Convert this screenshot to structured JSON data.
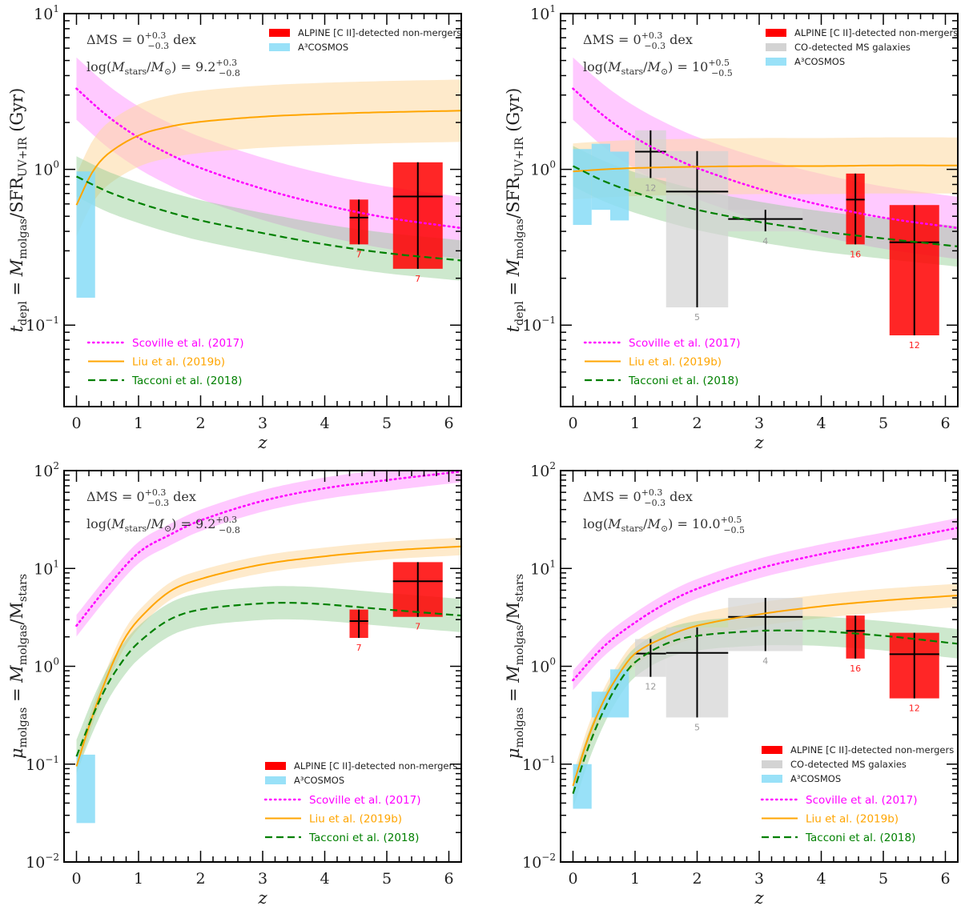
{
  "chart_data": [
    {
      "id": "tdepl_lowmass",
      "type": "line",
      "xlabel": "z",
      "ylabel": "t_depl = M_molgas / SFR_UV+IR (Gyr)",
      "ylabel_parts": {
        "base": "t",
        "sub1": "depl",
        "mid": " = M",
        "sub2": "molgas",
        "mid2": "/SFR",
        "sub3": "UV+IR",
        "end": " (Gyr)"
      },
      "xlim": [
        -0.2,
        6.2
      ],
      "ylim": [
        0.03,
        10
      ],
      "yscale": "log",
      "x_ticks": [
        "0",
        "1",
        "2",
        "3",
        "4",
        "5",
        "6"
      ],
      "y_ticks": [
        {
          "value": 10,
          "exp": "1"
        },
        {
          "value": 1,
          "exp": "0"
        },
        {
          "value": 0.1,
          "exp": "−1"
        }
      ],
      "annotations": {
        "line1": {
          "text": "ΔMS = 0",
          "sup": "+0.3",
          "sub": "−0.3",
          "suffix": " dex"
        },
        "line2": {
          "text": "log(M",
          "sub_stars": "stars",
          "mid": "/M",
          "sub_sun": "⊙",
          "eq": ") = 9.2",
          "sup": "+0.3",
          "sub": "−0.8"
        }
      },
      "legend_boxes": [
        {
          "label": "ALPINE [C II]-detected non-mergers",
          "color": "#ff0000"
        },
        {
          "label": "A³COSMOS",
          "color": "#87dcf7"
        }
      ],
      "legend_boxes_placement": "top-right",
      "legend_lines_placement": "bottom-left",
      "series": [
        {
          "name": "Scoville et al. (2017)",
          "style": "dotted",
          "color": "#ff00ff",
          "x": [
            0,
            0.5,
            1,
            1.5,
            2,
            3,
            4,
            5,
            6.2
          ],
          "y": [
            3.3,
            2.2,
            1.6,
            1.25,
            1.02,
            0.75,
            0.59,
            0.49,
            0.42
          ],
          "band_dex": 0.2
        },
        {
          "name": "Liu et al. (2019b)",
          "style": "solid",
          "color": "#ffa500",
          "x": [
            0,
            0.25,
            0.5,
            1,
            1.5,
            2,
            3,
            4,
            5,
            6.2
          ],
          "y": [
            0.59,
            0.95,
            1.25,
            1.65,
            1.88,
            2.02,
            2.18,
            2.27,
            2.33,
            2.38
          ],
          "band_dex": 0.2
        },
        {
          "name": "Tacconi et al. (2018)",
          "style": "dashed",
          "color": "#008000",
          "x": [
            0,
            0.5,
            1,
            1.5,
            2,
            3,
            4,
            5,
            6.2
          ],
          "y": [
            0.9,
            0.72,
            0.61,
            0.53,
            0.47,
            0.39,
            0.33,
            0.29,
            0.26
          ],
          "band_dex": 0.13
        }
      ],
      "boxes": [
        {
          "group": "A³COSMOS",
          "color": "#87dcf7",
          "x": [
            0.0,
            0.3
          ],
          "y": [
            0.15,
            0.97
          ],
          "median": null,
          "n": null
        },
        {
          "group": "ALPINE",
          "color": "#ff0000",
          "x": [
            4.4,
            4.7
          ],
          "y": [
            0.33,
            0.64
          ],
          "median": 0.49,
          "n": "7"
        },
        {
          "group": "ALPINE",
          "color": "#ff0000",
          "x": [
            5.1,
            5.9
          ],
          "y": [
            0.23,
            1.11
          ],
          "median": 0.67,
          "n": "7"
        }
      ]
    },
    {
      "id": "tdepl_highmass",
      "type": "line",
      "xlabel": "z",
      "ylabel": "t_depl = M_molgas / SFR_UV+IR (Gyr)",
      "ylabel_parts": {
        "base": "t",
        "sub1": "depl",
        "mid": " = M",
        "sub2": "molgas",
        "mid2": "/SFR",
        "sub3": "UV+IR",
        "end": " (Gyr)"
      },
      "xlim": [
        -0.2,
        6.2
      ],
      "ylim": [
        0.03,
        10
      ],
      "yscale": "log",
      "x_ticks": [
        "0",
        "1",
        "2",
        "3",
        "4",
        "5",
        "6"
      ],
      "y_ticks": [
        {
          "value": 10,
          "exp": "1"
        },
        {
          "value": 1,
          "exp": "0"
        },
        {
          "value": 0.1,
          "exp": "−1"
        }
      ],
      "annotations": {
        "line1": {
          "text": "ΔMS = 0",
          "sup": "+0.3",
          "sub": "−0.3",
          "suffix": " dex"
        },
        "line2": {
          "text": "log(M",
          "sub_stars": "stars",
          "mid": "/M",
          "sub_sun": "⊙",
          "eq": ") = 10",
          "sup": "+0.5",
          "sub": "−0.5"
        }
      },
      "legend_boxes": [
        {
          "label": "ALPINE [C II]-detected non-mergers",
          "color": "#ff0000"
        },
        {
          "label": "CO-detected MS galaxies",
          "color": "#d3d3d3"
        },
        {
          "label": "A³COSMOS",
          "color": "#87dcf7"
        }
      ],
      "legend_boxes_placement": "top-right",
      "legend_lines_placement": "bottom-left",
      "series": [
        {
          "name": "Scoville et al. (2017)",
          "style": "dotted",
          "color": "#ff00ff",
          "x": [
            0,
            0.5,
            1,
            1.5,
            2,
            3,
            4,
            5,
            6.2
          ],
          "y": [
            3.3,
            2.2,
            1.6,
            1.25,
            1.02,
            0.75,
            0.59,
            0.49,
            0.42
          ],
          "band_dex": 0.2
        },
        {
          "name": "Liu et al. (2019b)",
          "style": "solid",
          "color": "#ffa500",
          "x": [
            0,
            0.5,
            1,
            2,
            3,
            4,
            5,
            6.2
          ],
          "y": [
            0.97,
            1.0,
            1.02,
            1.04,
            1.05,
            1.05,
            1.06,
            1.06
          ],
          "band_dex": 0.18
        },
        {
          "name": "Tacconi et al. (2018)",
          "style": "dashed",
          "color": "#008000",
          "x": [
            0,
            0.5,
            1,
            1.5,
            2,
            3,
            4,
            5,
            6.2
          ],
          "y": [
            1.05,
            0.84,
            0.71,
            0.62,
            0.55,
            0.46,
            0.4,
            0.36,
            0.32
          ],
          "band_dex": 0.13
        }
      ],
      "boxes": [
        {
          "group": "A³COSMOS",
          "color": "#87dcf7",
          "x": [
            0.0,
            0.3
          ],
          "y": [
            0.44,
            1.35
          ],
          "median": null,
          "n": null
        },
        {
          "group": "A³COSMOS",
          "color": "#87dcf7",
          "x": [
            0.3,
            0.6
          ],
          "y": [
            0.55,
            1.46
          ],
          "median": null,
          "n": null
        },
        {
          "group": "A³COSMOS",
          "color": "#87dcf7",
          "x": [
            0.6,
            0.9
          ],
          "y": [
            0.47,
            1.3
          ],
          "median": null,
          "n": null
        },
        {
          "group": "CO",
          "color": "#d3d3d3",
          "x": [
            1.0,
            1.5
          ],
          "y": [
            0.88,
            1.78
          ],
          "median": 1.3,
          "n": "12"
        },
        {
          "group": "CO",
          "color": "#d3d3d3",
          "x": [
            1.5,
            2.5
          ],
          "y": [
            0.13,
            1.31
          ],
          "median": 0.72,
          "n": "5"
        },
        {
          "group": "CO",
          "color": "#d3d3d3",
          "x": [
            2.5,
            3.7
          ],
          "y": [
            0.4,
            0.55
          ],
          "median": 0.48,
          "n": "4"
        },
        {
          "group": "ALPINE",
          "color": "#ff0000",
          "x": [
            4.4,
            4.7
          ],
          "y": [
            0.33,
            0.94
          ],
          "median": 0.64,
          "n": "16"
        },
        {
          "group": "ALPINE",
          "color": "#ff0000",
          "x": [
            5.1,
            5.9
          ],
          "y": [
            0.086,
            0.59
          ],
          "median": 0.34,
          "n": "12"
        }
      ]
    },
    {
      "id": "mu_lowmass",
      "type": "line",
      "xlabel": "z",
      "ylabel": "μ_molgas = M_molgas / M_stars",
      "ylabel_parts": {
        "base": "μ",
        "sub1": "molgas",
        "mid": " = M",
        "sub2": "molgas",
        "mid2": "/M",
        "sub3": "stars",
        "end": ""
      },
      "xlim": [
        -0.2,
        6.2
      ],
      "ylim": [
        0.01,
        100
      ],
      "yscale": "log",
      "x_ticks": [
        "0",
        "1",
        "2",
        "3",
        "4",
        "5",
        "6"
      ],
      "y_ticks": [
        {
          "value": 100,
          "exp": "2"
        },
        {
          "value": 10,
          "exp": "1"
        },
        {
          "value": 1,
          "exp": "0"
        },
        {
          "value": 0.1,
          "exp": "−1"
        },
        {
          "value": 0.01,
          "exp": "−2"
        }
      ],
      "annotations": {
        "line1": {
          "text": "ΔMS = 0",
          "sup": "+0.3",
          "sub": "−0.3",
          "suffix": " dex"
        },
        "line2": {
          "text": "log(M",
          "sub_stars": "stars",
          "mid": "/M",
          "sub_sun": "⊙",
          "eq": ") = 9.2",
          "sup": "+0.3",
          "sub": "−0.8"
        }
      },
      "legend_boxes": [
        {
          "label": "ALPINE [C II]-detected non-mergers",
          "color": "#ff0000"
        },
        {
          "label": "A³COSMOS",
          "color": "#87dcf7"
        }
      ],
      "legend_boxes_placement": "bottom-right",
      "legend_lines_placement": "bottom-right",
      "series": [
        {
          "name": "Scoville et al. (2017)",
          "style": "dotted",
          "color": "#ff00ff",
          "x": [
            0,
            0.5,
            1,
            1.5,
            2,
            3,
            4,
            5,
            6.2
          ],
          "y": [
            2.6,
            6.5,
            14.5,
            22,
            31,
            49,
            66,
            80,
            98
          ],
          "band_dex": 0.11
        },
        {
          "name": "Liu et al. (2019b)",
          "style": "solid",
          "color": "#ffa500",
          "x": [
            0,
            0.25,
            0.5,
            0.75,
            1,
            1.5,
            2,
            3,
            4,
            5,
            6.2
          ],
          "y": [
            0.095,
            0.3,
            0.8,
            1.8,
            3.0,
            5.8,
            7.8,
            11.0,
            13.3,
            15.2,
            16.8
          ],
          "band_dex": 0.09
        },
        {
          "name": "Tacconi et al. (2018)",
          "style": "dashed",
          "color": "#008000",
          "x": [
            0,
            0.25,
            0.5,
            0.75,
            1,
            1.5,
            2,
            3,
            3.5,
            4,
            5,
            6.2
          ],
          "y": [
            0.12,
            0.3,
            0.65,
            1.15,
            1.75,
            3.0,
            3.8,
            4.4,
            4.45,
            4.3,
            3.8,
            3.3
          ],
          "band_dex": 0.17
        }
      ],
      "boxes": [
        {
          "group": "A³COSMOS",
          "color": "#87dcf7",
          "x": [
            0.0,
            0.3
          ],
          "y": [
            0.025,
            0.125
          ],
          "median": null,
          "n": null
        },
        {
          "group": "ALPINE",
          "color": "#ff0000",
          "x": [
            4.4,
            4.7
          ],
          "y": [
            1.95,
            3.8
          ],
          "median": 2.9,
          "n": "7"
        },
        {
          "group": "ALPINE",
          "color": "#ff0000",
          "x": [
            5.1,
            5.9
          ],
          "y": [
            3.2,
            11.6
          ],
          "median": 7.4,
          "n": "7"
        }
      ]
    },
    {
      "id": "mu_highmass",
      "type": "line",
      "xlabel": "z",
      "ylabel": "μ_molgas = M_molgas / M_stars",
      "ylabel_parts": {
        "base": "μ",
        "sub1": "molgas",
        "mid": " = M",
        "sub2": "molgas",
        "mid2": "/M",
        "sub3": "stars",
        "end": ""
      },
      "xlim": [
        -0.2,
        6.2
      ],
      "ylim": [
        0.01,
        100
      ],
      "yscale": "log",
      "x_ticks": [
        "0",
        "1",
        "2",
        "3",
        "4",
        "5",
        "6"
      ],
      "y_ticks": [
        {
          "value": 100,
          "exp": "2"
        },
        {
          "value": 10,
          "exp": "1"
        },
        {
          "value": 1,
          "exp": "0"
        },
        {
          "value": 0.1,
          "exp": "−1"
        },
        {
          "value": 0.01,
          "exp": "−2"
        }
      ],
      "annotations": {
        "line1": {
          "text": "ΔMS = 0",
          "sup": "+0.3",
          "sub": "−0.3",
          "suffix": " dex"
        },
        "line2": {
          "text": "log(M",
          "sub_stars": "stars",
          "mid": "/M",
          "sub_sun": "⊙",
          "eq": ") = 10.0",
          "sup": "+0.5",
          "sub": "−0.5"
        }
      },
      "legend_boxes": [
        {
          "label": "ALPINE [C II]-detected non-mergers",
          "color": "#ff0000"
        },
        {
          "label": "CO-detected MS galaxies",
          "color": "#d3d3d3"
        },
        {
          "label": "A³COSMOS",
          "color": "#87dcf7"
        }
      ],
      "legend_boxes_placement": "bottom-right",
      "legend_lines_placement": "bottom-right",
      "series": [
        {
          "name": "Scoville et al. (2017)",
          "style": "dotted",
          "color": "#ff00ff",
          "x": [
            0,
            0.5,
            1,
            1.5,
            2,
            3,
            4,
            5,
            6.2
          ],
          "y": [
            0.72,
            1.6,
            2.8,
            4.4,
            6.2,
            10,
            14,
            18.5,
            26
          ],
          "band_dex": 0.1
        },
        {
          "name": "Liu et al. (2019b)",
          "style": "solid",
          "color": "#ffa500",
          "x": [
            0,
            0.25,
            0.5,
            0.75,
            1,
            1.5,
            2,
            3,
            4,
            5,
            6.2
          ],
          "y": [
            0.06,
            0.19,
            0.45,
            0.85,
            1.35,
            2.0,
            2.6,
            3.4,
            4.1,
            4.7,
            5.3
          ],
          "band_dex": 0.12
        },
        {
          "name": "Tacconi et al. (2018)",
          "style": "dashed",
          "color": "#008000",
          "x": [
            0,
            0.25,
            0.5,
            0.75,
            1,
            1.5,
            2,
            3,
            3.5,
            4,
            5,
            6.2
          ],
          "y": [
            0.05,
            0.15,
            0.36,
            0.7,
            1.1,
            1.7,
            2.05,
            2.3,
            2.32,
            2.28,
            2.05,
            1.7
          ],
          "band_dex": 0.15
        }
      ],
      "boxes": [
        {
          "group": "A³COSMOS",
          "color": "#87dcf7",
          "x": [
            0.0,
            0.3
          ],
          "y": [
            0.035,
            0.1
          ],
          "median": null,
          "n": null
        },
        {
          "group": "A³COSMOS",
          "color": "#87dcf7",
          "x": [
            0.3,
            0.6
          ],
          "y": [
            0.3,
            0.55
          ],
          "median": null,
          "n": null
        },
        {
          "group": "A³COSMOS",
          "color": "#87dcf7",
          "x": [
            0.6,
            0.9
          ],
          "y": [
            0.3,
            0.93
          ],
          "median": null,
          "n": null
        },
        {
          "group": "CO",
          "color": "#d3d3d3",
          "x": [
            1.0,
            1.5
          ],
          "y": [
            0.78,
            1.9
          ],
          "median": 1.35,
          "n": "12"
        },
        {
          "group": "CO",
          "color": "#d3d3d3",
          "x": [
            1.5,
            2.5
          ],
          "y": [
            0.3,
            2.5
          ],
          "median": 1.37,
          "n": "5"
        },
        {
          "group": "CO",
          "color": "#d3d3d3",
          "x": [
            2.5,
            3.7
          ],
          "y": [
            1.43,
            5.0
          ],
          "median": 3.2,
          "n": "4"
        },
        {
          "group": "ALPINE",
          "color": "#ff0000",
          "x": [
            4.4,
            4.7
          ],
          "y": [
            1.2,
            3.3
          ],
          "median": 2.3,
          "n": "16"
        },
        {
          "group": "ALPINE",
          "color": "#ff0000",
          "x": [
            5.1,
            5.9
          ],
          "y": [
            0.47,
            2.2
          ],
          "median": 1.33,
          "n": "12"
        }
      ]
    }
  ]
}
